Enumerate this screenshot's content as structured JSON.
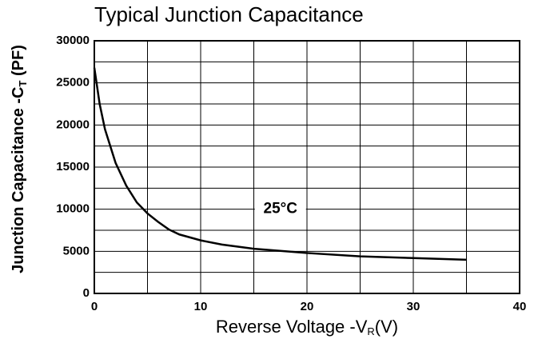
{
  "chart_data": {
    "type": "line",
    "title": "Typical Junction Capacitance",
    "xlabel": [
      "Reverse Voltage -V",
      "R",
      "(V)"
    ],
    "ylabel": [
      "Junction Capacitance -C",
      "T",
      " (PF)"
    ],
    "annotation": "25°C",
    "annotation_at": [
      17.5,
      10000
    ],
    "x": [
      0,
      0.5,
      1,
      2,
      3,
      4,
      5,
      6,
      7,
      8,
      10,
      12,
      15,
      20,
      25,
      30,
      35
    ],
    "values": [
      26800,
      22500,
      19500,
      15500,
      12800,
      10800,
      9500,
      8500,
      7600,
      7000,
      6300,
      5800,
      5300,
      4800,
      4400,
      4200,
      4000
    ],
    "color": "#000000",
    "xlim": [
      0,
      40
    ],
    "xticks": [
      0,
      10,
      20,
      30,
      40
    ],
    "ylim": [
      0,
      30000
    ],
    "yticks": [
      0,
      5000,
      10000,
      15000,
      20000,
      25000,
      30000
    ],
    "xgrid": [
      5,
      10,
      15,
      20,
      25,
      30,
      35
    ],
    "ygrid": [
      2500,
      5000,
      7500,
      10000,
      12500,
      15000,
      17500,
      20000,
      22500,
      25000,
      27500
    ],
    "grid": true
  }
}
